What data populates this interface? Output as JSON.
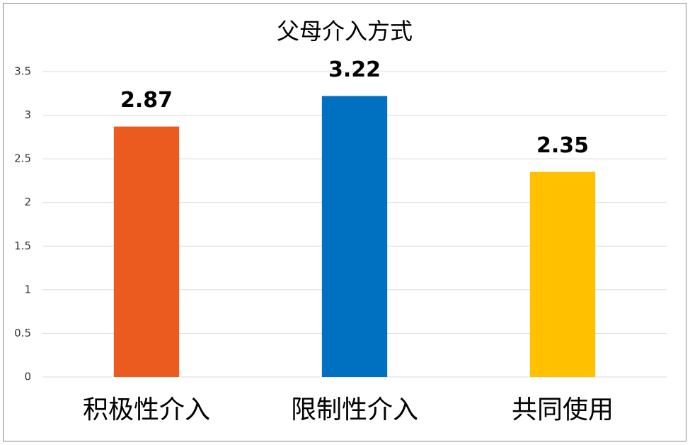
{
  "chart_data": {
    "type": "bar",
    "title": "父母介入方式",
    "categories": [
      "积极性介入",
      "限制性介入",
      "共同使用"
    ],
    "values": [
      2.87,
      3.22,
      2.35
    ],
    "colors": [
      "#eb5a1e",
      "#0070c0",
      "#ffc000"
    ],
    "ylim": [
      0,
      3.5
    ],
    "yticks": [
      0,
      0.5,
      1,
      1.5,
      2,
      2.5,
      3,
      3.5
    ],
    "grid": true
  }
}
